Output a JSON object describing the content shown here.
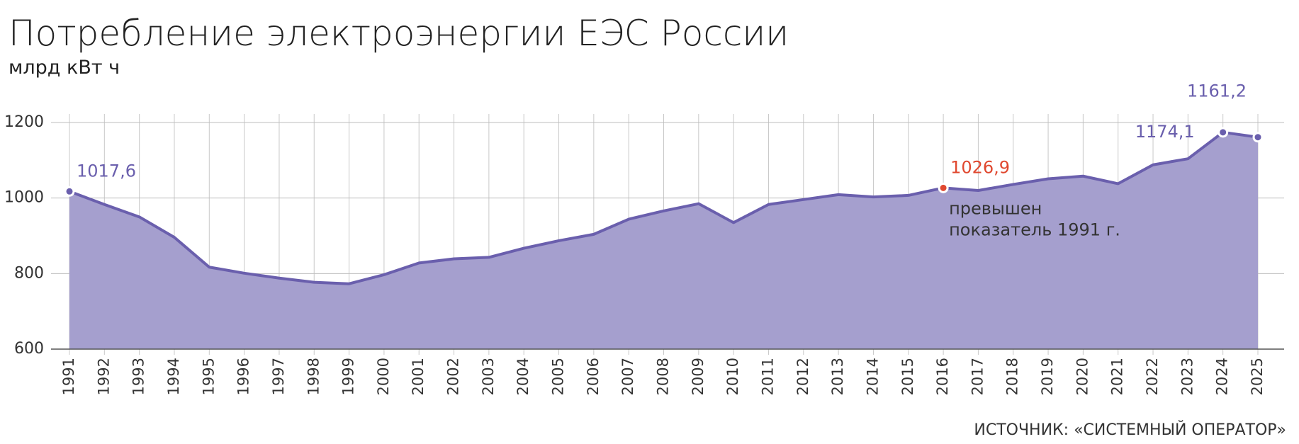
{
  "chart_data": {
    "type": "area",
    "title": "Потребление электроэнергии ЕЭС России",
    "subtitle": "млрд кВт ч",
    "source": "ИСТОЧНИК: «СИСТЕМНЫЙ ОПЕРАТОР»",
    "categories": [
      "1991",
      "1992",
      "1993",
      "1994",
      "1995",
      "1996",
      "1997",
      "1998",
      "1999",
      "2000",
      "2001",
      "2002",
      "2003",
      "2004",
      "2005",
      "2006",
      "2007",
      "2008",
      "2009",
      "2010",
      "2011",
      "2012",
      "2013",
      "2014",
      "2015",
      "2016",
      "2017",
      "2018",
      "2019",
      "2020",
      "2021",
      "2022",
      "2023",
      "2024",
      "2025"
    ],
    "values": [
      1017.6,
      983,
      950,
      896,
      817,
      801,
      788,
      777,
      773,
      797,
      828,
      839,
      843,
      867,
      887,
      904,
      944,
      966,
      985,
      935,
      983,
      996,
      1009,
      1003,
      1007,
      1026.9,
      1020,
      1036,
      1051,
      1058,
      1038,
      1088,
      1104,
      1174.1,
      1161.2
    ],
    "value_labels": [
      "1017,6",
      null,
      null,
      null,
      null,
      null,
      null,
      null,
      null,
      null,
      null,
      null,
      null,
      null,
      null,
      null,
      null,
      null,
      null,
      null,
      null,
      null,
      null,
      null,
      null,
      "1026,9",
      null,
      null,
      null,
      null,
      null,
      null,
      null,
      "1174,1",
      "1161,2"
    ],
    "value_label_colors": [
      "#6a5fad",
      null,
      null,
      null,
      null,
      null,
      null,
      null,
      null,
      null,
      null,
      null,
      null,
      null,
      null,
      null,
      null,
      null,
      null,
      null,
      null,
      null,
      null,
      null,
      null,
      "#e0482f",
      null,
      null,
      null,
      null,
      null,
      null,
      null,
      "#6a5fad",
      "#6a5fad"
    ],
    "color": "#6a5fad",
    "fill_color": "#a59fce",
    "annotation": [
      "превышен",
      "показатель 1991 г."
    ],
    "ylim": [
      600,
      1200
    ],
    "yticks": [
      600,
      800,
      1000,
      1200
    ],
    "grid": true
  }
}
